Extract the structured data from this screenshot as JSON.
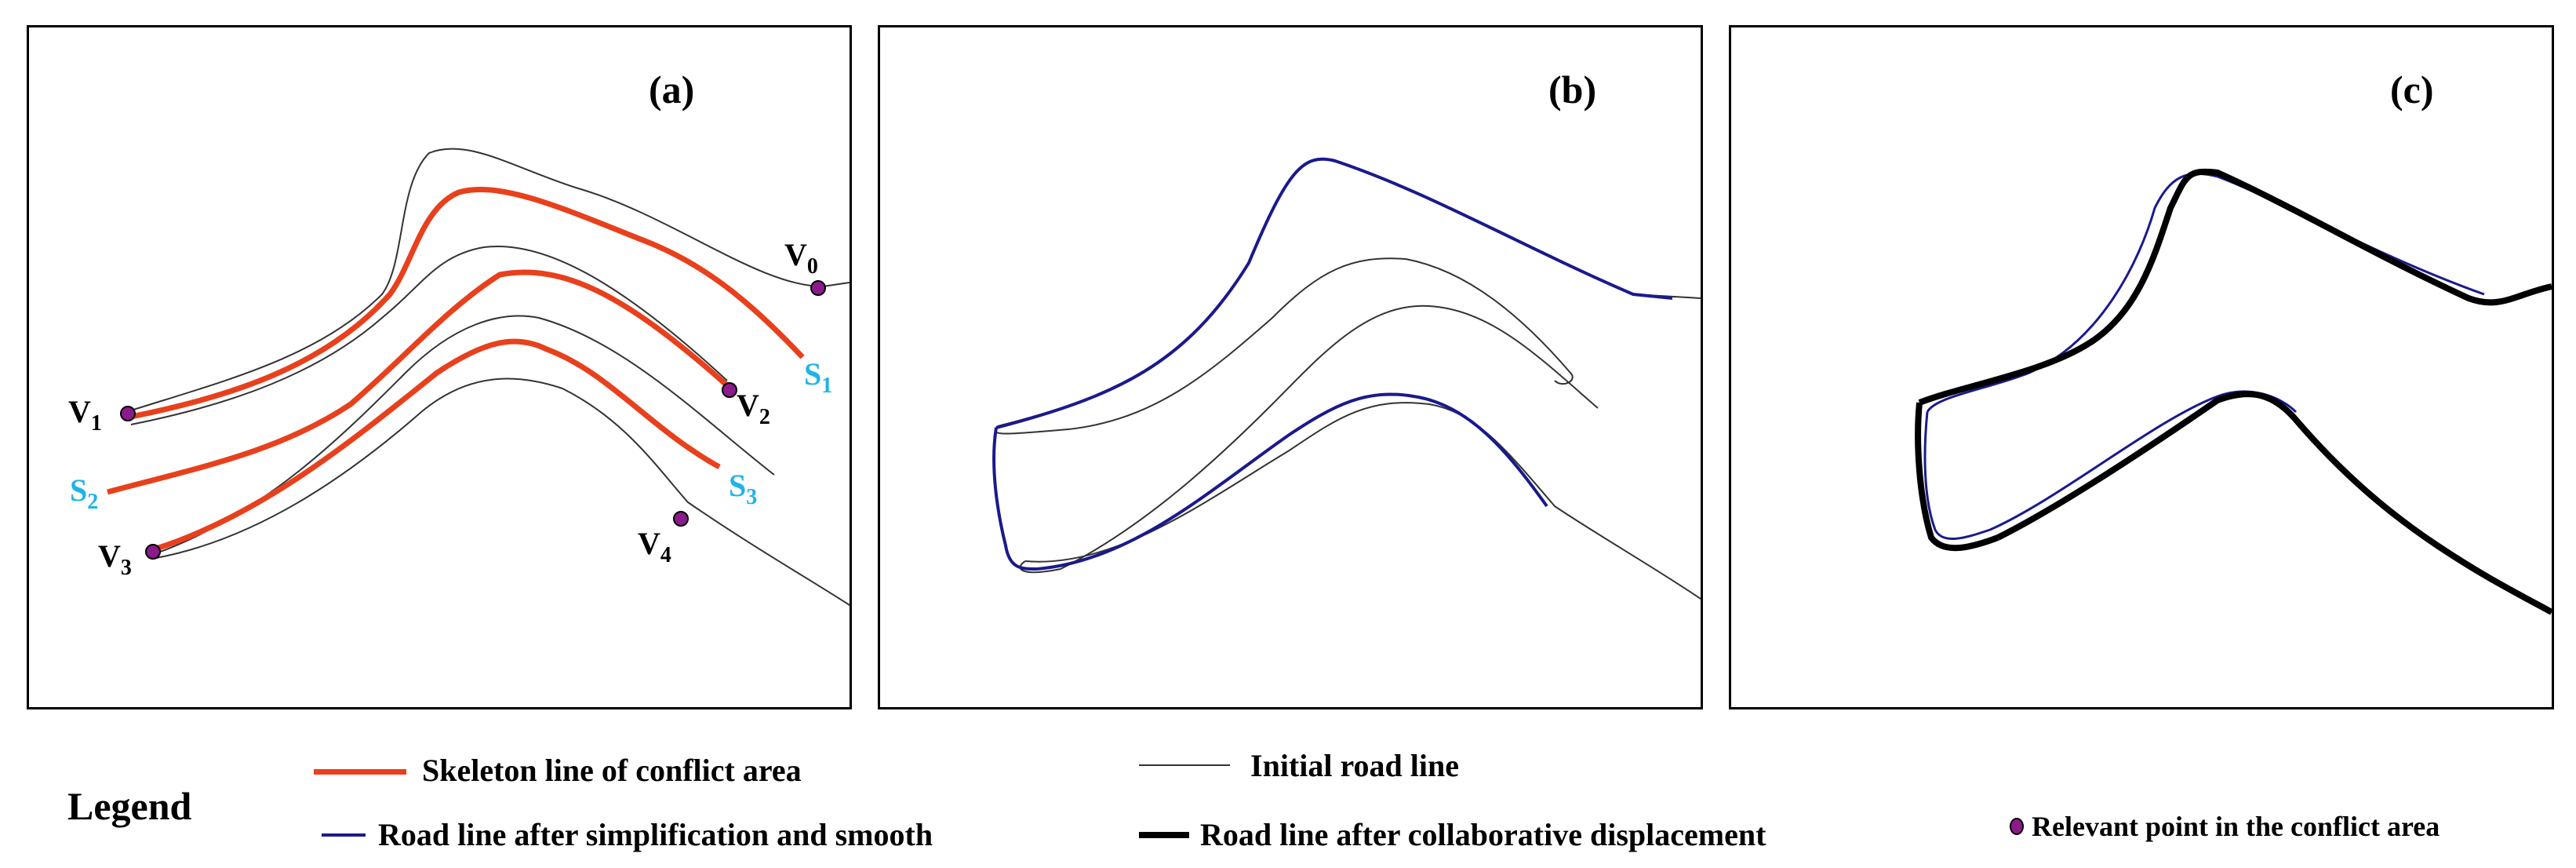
{
  "panels": [
    {
      "label": "(a)"
    },
    {
      "label": "(b)"
    },
    {
      "label": "(c)"
    }
  ],
  "points": {
    "v0": {
      "letter": "V",
      "sub": "0"
    },
    "v1": {
      "letter": "V",
      "sub": "1"
    },
    "v2": {
      "letter": "V",
      "sub": "2"
    },
    "v3": {
      "letter": "V",
      "sub": "3"
    },
    "v4": {
      "letter": "V",
      "sub": "4"
    }
  },
  "skeletons": {
    "s1": {
      "letter": "S",
      "sub": "1"
    },
    "s2": {
      "letter": "S",
      "sub": "2"
    },
    "s3": {
      "letter": "S",
      "sub": "3"
    }
  },
  "legend": {
    "title": "Legend",
    "skeleton": "Skeleton line of conflict area",
    "initial": "Initial road line",
    "simplified": "Road line after simplification and smooth",
    "displaced": "Road line after collaborative displacement",
    "relevant": "Relevant point in the conflict area"
  },
  "colors": {
    "skeleton": "#e8401c",
    "initial": "#333333",
    "simplified": "#1a1a8c",
    "displaced": "#000000",
    "point": "#8b1a8b",
    "skeleton_label": "#1fb3e6"
  }
}
